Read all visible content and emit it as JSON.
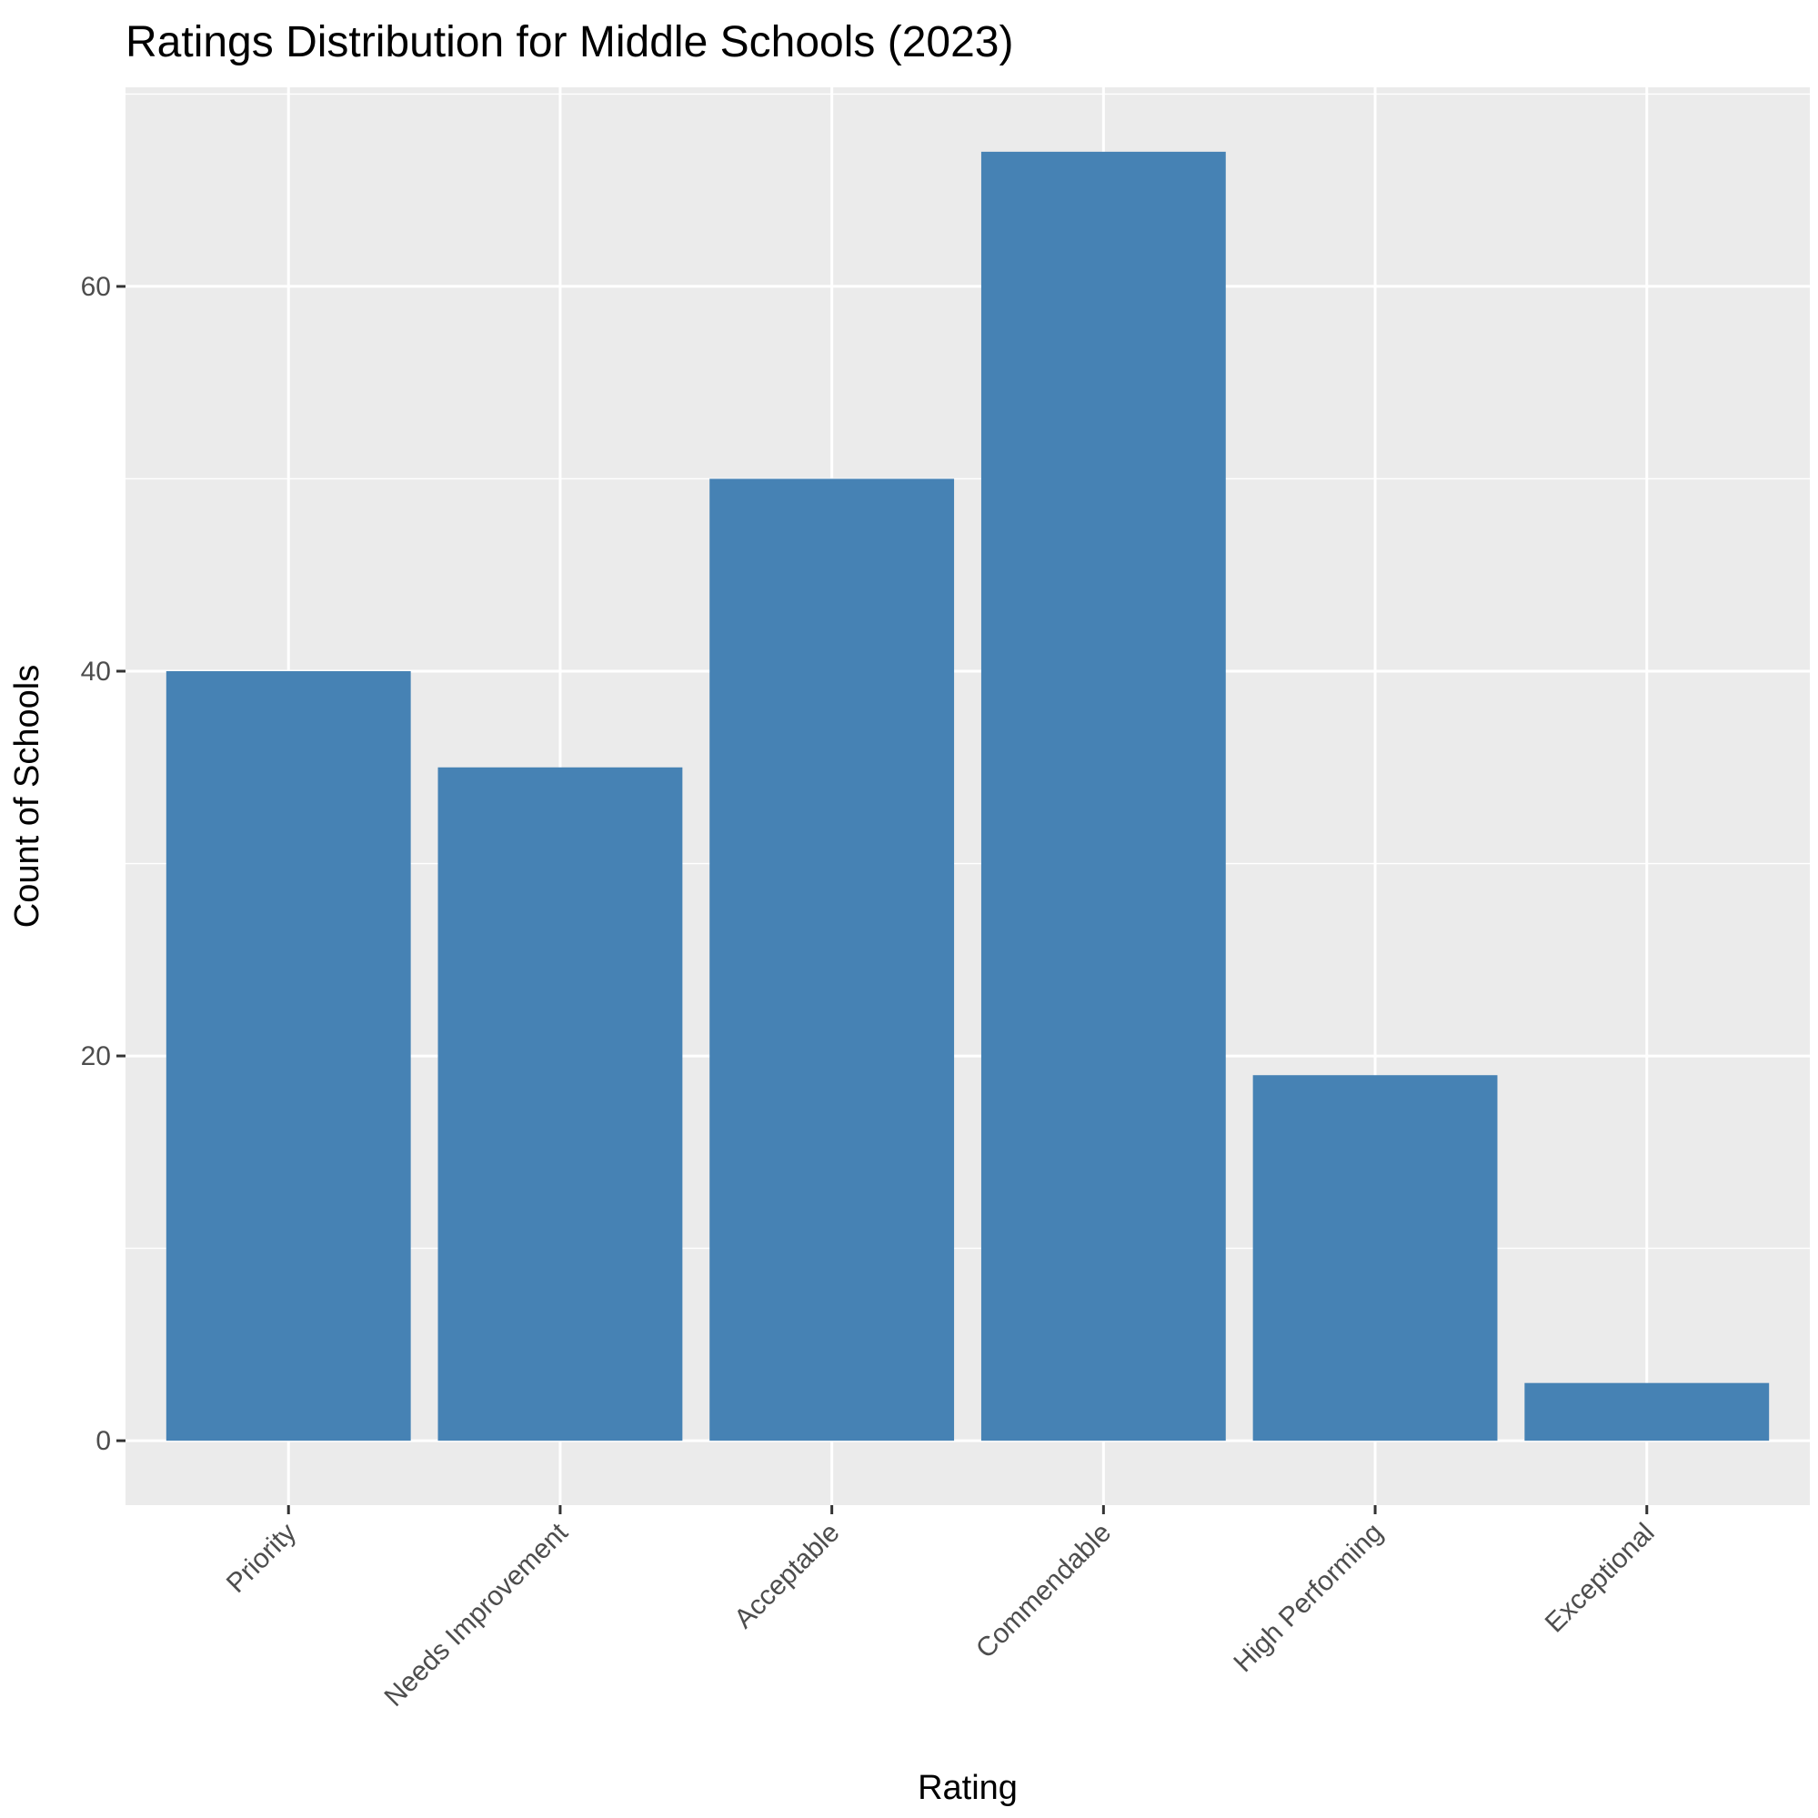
{
  "chart_data": {
    "type": "bar",
    "title": "Ratings Distribution for Middle Schools (2023)",
    "xlabel": "Rating",
    "ylabel": "Count of Schools",
    "categories": [
      "Priority",
      "Needs Improvement",
      "Acceptable",
      "Commendable",
      "High Performing",
      "Exceptional"
    ],
    "values": [
      40,
      35,
      50,
      67,
      19,
      3
    ],
    "ylim": [
      -3.35,
      70.35
    ],
    "yticks": [
      0,
      20,
      40,
      60
    ],
    "yticks_minor": [
      10,
      30,
      50,
      70
    ],
    "grid": true,
    "legend": "none",
    "colors": {
      "bar": "#4682B4",
      "panel_background": "#EBEBEB",
      "grid": "#FFFFFF",
      "tick_mark": "#333333",
      "tick_label": "#4D4D4D",
      "text": "#000000"
    }
  }
}
